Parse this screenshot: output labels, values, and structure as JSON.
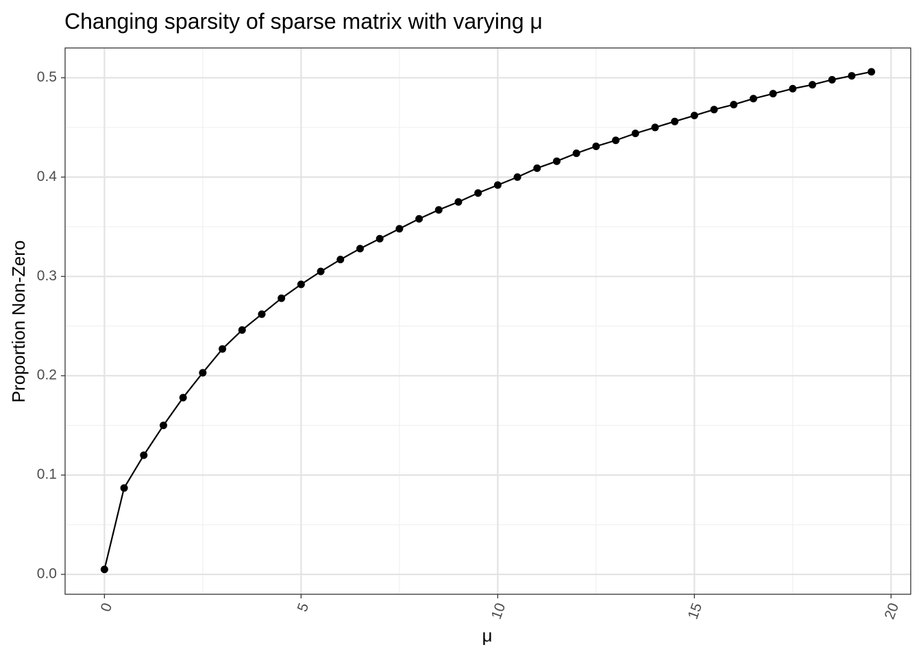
{
  "chart_data": {
    "type": "line",
    "title": "Changing sparsity of sparse matrix with varying μ",
    "xlabel": "μ",
    "ylabel": "Proportion Non-Zero",
    "xlim": [
      -1,
      20.5
    ],
    "ylim": [
      -0.02,
      0.53
    ],
    "x_ticks": [
      0,
      5,
      10,
      15,
      20
    ],
    "x_tick_labels": [
      "0",
      "5",
      "10",
      "15",
      "20"
    ],
    "x_minor_ticks": [
      2.5,
      7.5,
      12.5,
      17.5
    ],
    "y_ticks": [
      0.0,
      0.1,
      0.2,
      0.3,
      0.4,
      0.5
    ],
    "y_tick_labels": [
      "0.0",
      "0.1",
      "0.2",
      "0.3",
      "0.4",
      "0.5"
    ],
    "y_minor_ticks": [
      0.05,
      0.15,
      0.25,
      0.35,
      0.45
    ],
    "grid": true,
    "markers": true,
    "series": [
      {
        "x": [
          0,
          0.5,
          1,
          1.5,
          2,
          2.5,
          3,
          3.5,
          4,
          4.5,
          5,
          5.5,
          6,
          6.5,
          7,
          7.5,
          8,
          8.5,
          9,
          9.5,
          10,
          10.5,
          11,
          11.5,
          12,
          12.5,
          13,
          13.5,
          14,
          14.5,
          15,
          15.5,
          16,
          16.5,
          17,
          17.5,
          18,
          18.5,
          19,
          19.5
        ],
        "y": [
          0.005,
          0.087,
          0.12,
          0.15,
          0.178,
          0.203,
          0.227,
          0.246,
          0.262,
          0.278,
          0.292,
          0.305,
          0.317,
          0.328,
          0.338,
          0.348,
          0.358,
          0.367,
          0.375,
          0.384,
          0.392,
          0.4,
          0.409,
          0.416,
          0.424,
          0.431,
          0.437,
          0.444,
          0.45,
          0.456,
          0.462,
          0.468,
          0.473,
          0.479,
          0.484,
          0.489,
          0.493,
          0.498,
          0.502,
          0.506
        ]
      }
    ]
  }
}
